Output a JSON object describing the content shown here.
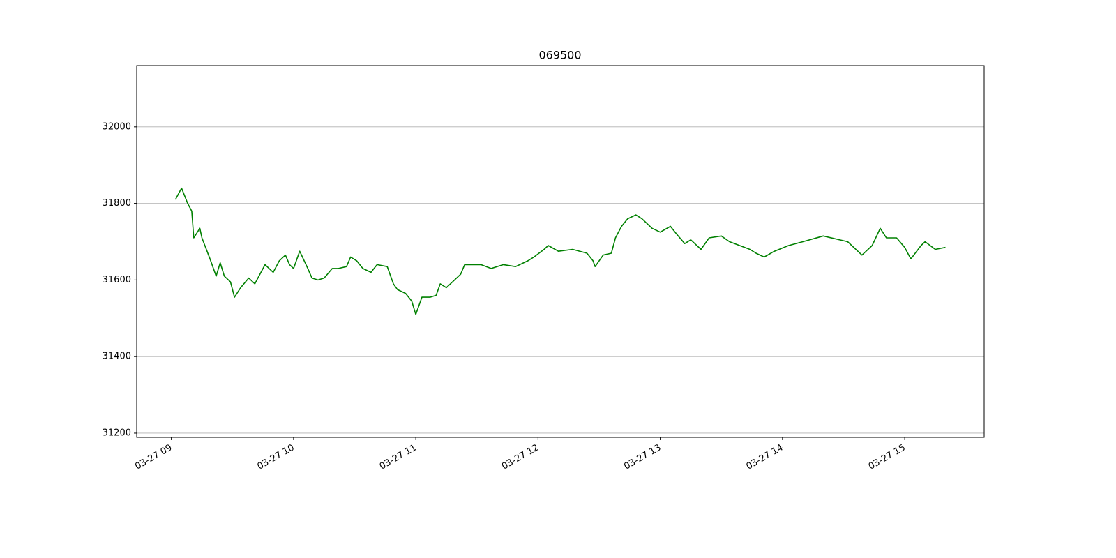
{
  "chart_data": {
    "type": "line",
    "title": "069500",
    "x": [
      "03-27 09:02",
      "03-27 09:05",
      "03-27 09:08",
      "03-27 09:10",
      "03-27 09:11",
      "03-27 09:14",
      "03-27 09:15",
      "03-27 09:19",
      "03-27 09:22",
      "03-27 09:24",
      "03-27 09:26",
      "03-27 09:29",
      "03-27 09:31",
      "03-27 09:34",
      "03-27 09:38",
      "03-27 09:41",
      "03-27 09:43",
      "03-27 09:46",
      "03-27 09:50",
      "03-27 09:53",
      "03-27 09:56",
      "03-27 09:58",
      "03-27 10:00",
      "03-27 10:03",
      "03-27 10:07",
      "03-27 10:09",
      "03-27 10:12",
      "03-27 10:15",
      "03-27 10:19",
      "03-27 10:22",
      "03-27 10:26",
      "03-27 10:28",
      "03-27 10:31",
      "03-27 10:34",
      "03-27 10:38",
      "03-27 10:41",
      "03-27 10:46",
      "03-27 10:49",
      "03-27 10:51",
      "03-27 10:55",
      "03-27 10:58",
      "03-27 11:00",
      "03-27 11:03",
      "03-27 11:07",
      "03-27 11:10",
      "03-27 11:12",
      "03-27 11:15",
      "03-27 11:19",
      "03-27 11:22",
      "03-27 11:24",
      "03-27 11:27",
      "03-27 11:32",
      "03-27 11:37",
      "03-27 11:43",
      "03-27 11:49",
      "03-27 11:55",
      "03-27 11:58",
      "03-27 12:03",
      "03-27 12:05",
      "03-27 12:10",
      "03-27 12:17",
      "03-27 12:24",
      "03-27 12:27",
      "03-27 12:28",
      "03-27 12:32",
      "03-27 12:36",
      "03-27 12:38",
      "03-27 12:41",
      "03-27 12:44",
      "03-27 12:48",
      "03-27 12:51",
      "03-27 12:56",
      "03-27 13:00",
      "03-27 13:05",
      "03-27 13:08",
      "03-27 13:12",
      "03-27 13:15",
      "03-27 13:20",
      "03-27 13:24",
      "03-27 13:30",
      "03-27 13:34",
      "03-27 13:39",
      "03-27 13:44",
      "03-27 13:47",
      "03-27 13:51",
      "03-27 13:56",
      "03-27 14:03",
      "03-27 14:10",
      "03-27 14:20",
      "03-27 14:32",
      "03-27 14:39",
      "03-27 14:44",
      "03-27 14:48",
      "03-27 14:51",
      "03-27 14:56",
      "03-27 15:00",
      "03-27 15:03",
      "03-27 15:08",
      "03-27 15:10",
      "03-27 15:15",
      "03-27 15:20"
    ],
    "series": [
      {
        "name": "069500",
        "color": "#008000",
        "values": [
          31810,
          31840,
          31800,
          31780,
          31710,
          31735,
          31710,
          31655,
          31610,
          31645,
          31610,
          31595,
          31555,
          31580,
          31605,
          31590,
          31610,
          31640,
          31620,
          31650,
          31665,
          31640,
          31630,
          31675,
          31630,
          31605,
          31600,
          31605,
          31630,
          31630,
          31635,
          31660,
          31650,
          31630,
          31620,
          31640,
          31635,
          31590,
          31575,
          31565,
          31545,
          31510,
          31555,
          31555,
          31560,
          31590,
          31580,
          31600,
          31615,
          31640,
          31640,
          31640,
          31630,
          31640,
          31635,
          31650,
          31660,
          31680,
          31690,
          31675,
          31680,
          31670,
          31650,
          31635,
          31665,
          31670,
          31710,
          31740,
          31760,
          31770,
          31760,
          31735,
          31725,
          31740,
          31720,
          31695,
          31705,
          31680,
          31710,
          31715,
          31700,
          31690,
          31680,
          31670,
          31660,
          31675,
          31690,
          31700,
          31715,
          31700,
          31665,
          31690,
          31735,
          31710,
          31710,
          31685,
          31655,
          31690,
          31700,
          31680,
          31685
        ]
      }
    ],
    "xlim": [
      "03-27 08:43",
      "03-27 15:39"
    ],
    "xticks": [
      {
        "value": "03-27 09:00",
        "label": "03-27 09"
      },
      {
        "value": "03-27 10:00",
        "label": "03-27 10"
      },
      {
        "value": "03-27 11:00",
        "label": "03-27 11"
      },
      {
        "value": "03-27 12:00",
        "label": "03-27 12"
      },
      {
        "value": "03-27 13:00",
        "label": "03-27 13"
      },
      {
        "value": "03-27 14:00",
        "label": "03-27 14"
      },
      {
        "value": "03-27 15:00",
        "label": "03-27 15"
      }
    ],
    "ylim": [
      31189,
      32160
    ],
    "yticks": [
      31200,
      31400,
      31600,
      31800,
      32000
    ],
    "grid": "y"
  }
}
